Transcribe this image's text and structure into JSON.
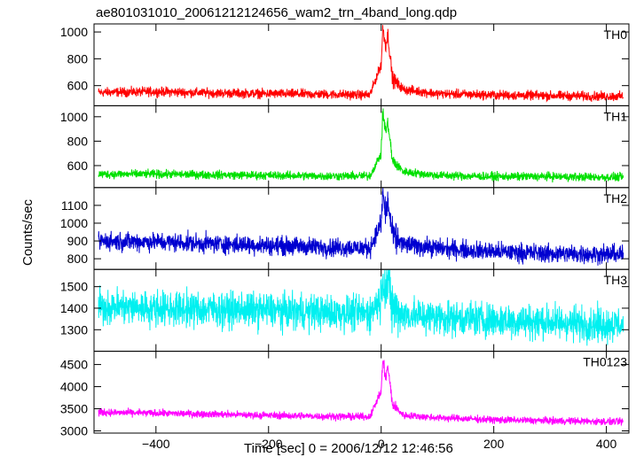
{
  "chart_data": {
    "type": "line",
    "title": "ae801031010_20061212124656_wam2_trn_4band_long.qdp",
    "xlabel": "Time [sec] 0 = 2006/12/12 12:46:56",
    "ylabel": "Counts/sec",
    "xlim": [
      -510,
      440
    ],
    "x_ticks": [
      -400,
      -200,
      0,
      200,
      400
    ],
    "x_tick_labels": [
      "−400",
      "−200",
      "0",
      "200",
      "400"
    ],
    "grid": false,
    "series": [
      {
        "name": "TH0",
        "color": "#ff0000",
        "ylim": [
          450,
          1060
        ],
        "y_ticks": [
          600,
          800,
          1000
        ],
        "y_tick_labels": [
          "600",
          "800",
          "1000"
        ],
        "baseline": 540,
        "noise": 30,
        "peak": 1030,
        "x": [
          -500,
          -400,
          -300,
          -200,
          -100,
          -20,
          0,
          3,
          8,
          12,
          20,
          40,
          100,
          200,
          300,
          400,
          430
        ],
        "values": [
          550,
          555,
          545,
          540,
          535,
          530,
          760,
          1030,
          900,
          980,
          650,
          570,
          540,
          530,
          525,
          520,
          520
        ]
      },
      {
        "name": "TH1",
        "color": "#00e000",
        "ylim": [
          420,
          1090
        ],
        "y_ticks": [
          600,
          800,
          1000
        ],
        "y_tick_labels": [
          "600",
          "800",
          "1000"
        ],
        "baseline": 520,
        "noise": 30,
        "peak": 1040,
        "x": [
          -500,
          -400,
          -300,
          -200,
          -100,
          -20,
          0,
          3,
          8,
          12,
          20,
          40,
          100,
          200,
          300,
          400,
          430
        ],
        "values": [
          530,
          530,
          525,
          520,
          515,
          515,
          700,
          1040,
          880,
          950,
          640,
          550,
          520,
          510,
          510,
          505,
          505
        ]
      },
      {
        "name": "TH2",
        "color": "#0000d0",
        "ylim": [
          740,
          1200
        ],
        "y_ticks": [
          800,
          900,
          1000,
          1100
        ],
        "y_tick_labels": [
          "800",
          "900",
          "1000",
          "1100"
        ],
        "baseline": 880,
        "noise": 45,
        "peak": 1170,
        "x": [
          -500,
          -400,
          -300,
          -200,
          -100,
          -20,
          0,
          3,
          8,
          12,
          20,
          40,
          100,
          200,
          300,
          400,
          430
        ],
        "values": [
          900,
          895,
          885,
          875,
          865,
          860,
          1000,
          1170,
          1050,
          1120,
          930,
          880,
          860,
          840,
          830,
          825,
          825
        ]
      },
      {
        "name": "TH3",
        "color": "#00f0f0",
        "ylim": [
          1200,
          1580
        ],
        "y_ticks": [
          1300,
          1400,
          1500
        ],
        "y_tick_labels": [
          "1300",
          "1400",
          "1500"
        ],
        "baseline": 1380,
        "noise": 70,
        "peak": 1570,
        "x": [
          -500,
          -400,
          -300,
          -200,
          -100,
          -20,
          0,
          3,
          8,
          12,
          20,
          40,
          100,
          200,
          300,
          400,
          430
        ],
        "values": [
          1410,
          1400,
          1395,
          1390,
          1380,
          1375,
          1450,
          1570,
          1480,
          1520,
          1400,
          1370,
          1360,
          1345,
          1335,
          1325,
          1325
        ]
      },
      {
        "name": "TH0123",
        "color": "#ff00ff",
        "ylim": [
          2950,
          4800
        ],
        "y_ticks": [
          3000,
          3500,
          4000,
          4500
        ],
        "y_tick_labels": [
          "3000",
          "3500",
          "4000",
          "4500"
        ],
        "baseline": 3350,
        "noise": 70,
        "peak": 4600,
        "x": [
          -500,
          -400,
          -300,
          -200,
          -100,
          -20,
          0,
          3,
          8,
          12,
          20,
          40,
          100,
          200,
          300,
          400,
          430
        ],
        "values": [
          3420,
          3400,
          3380,
          3350,
          3330,
          3320,
          3900,
          4600,
          4200,
          4450,
          3600,
          3350,
          3300,
          3250,
          3230,
          3210,
          3210
        ]
      }
    ]
  }
}
